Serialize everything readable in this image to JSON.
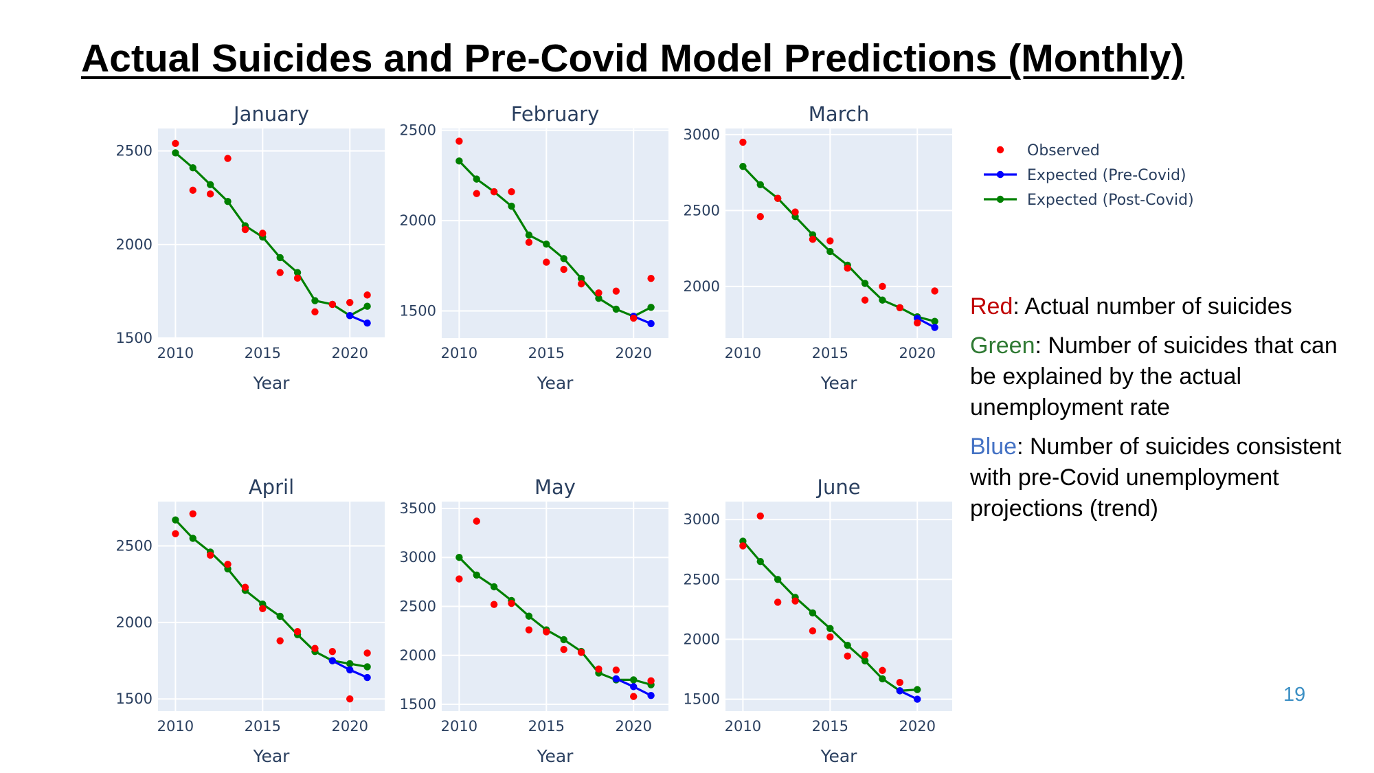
{
  "slide": {
    "title": "Actual Suicides and Pre-Covid Model Predictions (Monthly)",
    "page_number": "19"
  },
  "annotations": [
    {
      "color_word": "Red",
      "color": "#c00000",
      "rest": ": Actual number of suicides"
    },
    {
      "color_word": "Green",
      "color": "#2f7a33",
      "rest": ": Number of suicides that can be explained by the actual unemployment rate"
    },
    {
      "color_word": "Blue",
      "color": "#4472c4",
      "rest": ": Number of suicides consistent with pre-Covid unemployment projections (trend)"
    }
  ],
  "legend": {
    "items": [
      {
        "label": "Observed",
        "color": "#ff0000",
        "type": "markers"
      },
      {
        "label": "Expected (Pre-Covid)",
        "color": "#0000ff",
        "type": "lines+markers"
      },
      {
        "label": "Expected (Post-Covid)",
        "color": "#008000",
        "type": "lines+markers"
      }
    ]
  },
  "chart_data": [
    {
      "type": "scatter",
      "title": "January",
      "xlabel": "Year",
      "x": [
        2010,
        2011,
        2012,
        2013,
        2014,
        2015,
        2016,
        2017,
        2018,
        2019,
        2020,
        2021
      ],
      "xlim": [
        2009,
        2022
      ],
      "ylim": [
        1500,
        2620
      ],
      "xticks": [
        2010,
        2015,
        2020
      ],
      "yticks": [
        1500,
        2000,
        2500
      ],
      "series": [
        {
          "name": "Observed",
          "color": "#ff0000",
          "values": [
            2540,
            2290,
            2270,
            2460,
            2080,
            2060,
            1850,
            1820,
            1640,
            1680,
            1690,
            1730
          ]
        },
        {
          "name": "Expected (Pre-Covid)",
          "color": "#0000ff",
          "values": [
            null,
            null,
            null,
            null,
            null,
            null,
            null,
            null,
            null,
            null,
            1620,
            1580
          ]
        },
        {
          "name": "Expected (Post-Covid)",
          "color": "#008000",
          "values": [
            2490,
            2410,
            2320,
            2230,
            2100,
            2040,
            1930,
            1850,
            1700,
            1680,
            1620,
            1670
          ]
        }
      ]
    },
    {
      "type": "scatter",
      "title": "February",
      "xlabel": "Year",
      "x": [
        2010,
        2011,
        2012,
        2013,
        2014,
        2015,
        2016,
        2017,
        2018,
        2019,
        2020,
        2021
      ],
      "xlim": [
        2009,
        2022
      ],
      "ylim": [
        1350,
        2510
      ],
      "xticks": [
        2010,
        2015,
        2020
      ],
      "yticks": [
        1500,
        2000,
        2500
      ],
      "series": [
        {
          "name": "Observed",
          "color": "#ff0000",
          "values": [
            2440,
            2150,
            2160,
            2160,
            1880,
            1770,
            1730,
            1650,
            1600,
            1610,
            1460,
            1680
          ]
        },
        {
          "name": "Expected (Pre-Covid)",
          "color": "#0000ff",
          "values": [
            null,
            null,
            null,
            null,
            null,
            null,
            null,
            null,
            null,
            null,
            1470,
            1430
          ]
        },
        {
          "name": "Expected (Post-Covid)",
          "color": "#008000",
          "values": [
            2330,
            2230,
            2160,
            2080,
            1920,
            1870,
            1790,
            1680,
            1570,
            1510,
            1470,
            1520
          ]
        }
      ]
    },
    {
      "type": "scatter",
      "title": "March",
      "xlabel": "Year",
      "x": [
        2010,
        2011,
        2012,
        2013,
        2014,
        2015,
        2016,
        2017,
        2018,
        2019,
        2020,
        2021
      ],
      "xlim": [
        2009,
        2022
      ],
      "ylim": [
        1660,
        3040
      ],
      "xticks": [
        2010,
        2015,
        2020
      ],
      "yticks": [
        2000,
        2500,
        3000
      ],
      "series": [
        {
          "name": "Observed",
          "color": "#ff0000",
          "values": [
            2950,
            2460,
            2580,
            2490,
            2310,
            2300,
            2120,
            1910,
            2000,
            1860,
            1760,
            1970
          ]
        },
        {
          "name": "Expected (Pre-Covid)",
          "color": "#0000ff",
          "values": [
            null,
            null,
            null,
            null,
            null,
            null,
            null,
            null,
            null,
            null,
            1790,
            1730
          ]
        },
        {
          "name": "Expected (Post-Covid)",
          "color": "#008000",
          "values": [
            2790,
            2670,
            2580,
            2460,
            2340,
            2230,
            2140,
            2020,
            1910,
            1860,
            1800,
            1770
          ]
        }
      ]
    },
    {
      "type": "scatter",
      "title": "April",
      "xlabel": "Year",
      "x": [
        2010,
        2011,
        2012,
        2013,
        2014,
        2015,
        2016,
        2017,
        2018,
        2019,
        2020,
        2021
      ],
      "xlim": [
        2009,
        2022
      ],
      "ylim": [
        1420,
        2790
      ],
      "xticks": [
        2010,
        2015,
        2020
      ],
      "yticks": [
        1500,
        2000,
        2500
      ],
      "series": [
        {
          "name": "Observed",
          "color": "#ff0000",
          "values": [
            2580,
            2710,
            2440,
            2380,
            2230,
            2090,
            1880,
            1940,
            1830,
            1810,
            1500,
            1800
          ]
        },
        {
          "name": "Expected (Pre-Covid)",
          "color": "#0000ff",
          "values": [
            null,
            null,
            null,
            null,
            null,
            null,
            null,
            null,
            null,
            1750,
            1690,
            1640
          ]
        },
        {
          "name": "Expected (Post-Covid)",
          "color": "#008000",
          "values": [
            2670,
            2550,
            2460,
            2350,
            2210,
            2120,
            2040,
            1920,
            1810,
            1750,
            1730,
            1710
          ]
        }
      ]
    },
    {
      "type": "scatter",
      "title": "May",
      "xlabel": "Year",
      "x": [
        2010,
        2011,
        2012,
        2013,
        2014,
        2015,
        2016,
        2017,
        2018,
        2019,
        2020,
        2021
      ],
      "xlim": [
        2009,
        2022
      ],
      "ylim": [
        1430,
        3570
      ],
      "xticks": [
        2010,
        2015,
        2020
      ],
      "yticks": [
        1500,
        2000,
        2500,
        3000,
        3500
      ],
      "series": [
        {
          "name": "Observed",
          "color": "#ff0000",
          "values": [
            2780,
            3370,
            2520,
            2530,
            2260,
            2240,
            2060,
            2030,
            1860,
            1850,
            1580,
            1740
          ]
        },
        {
          "name": "Expected (Pre-Covid)",
          "color": "#0000ff",
          "values": [
            null,
            null,
            null,
            null,
            null,
            null,
            null,
            null,
            null,
            1760,
            1680,
            1590
          ]
        },
        {
          "name": "Expected (Post-Covid)",
          "color": "#008000",
          "values": [
            3000,
            2820,
            2700,
            2560,
            2400,
            2260,
            2160,
            2040,
            1820,
            1750,
            1750,
            1700
          ]
        }
      ]
    },
    {
      "type": "scatter",
      "title": "June",
      "xlabel": "Year",
      "x": [
        2010,
        2011,
        2012,
        2013,
        2014,
        2015,
        2016,
        2017,
        2018,
        2019,
        2020,
        2021
      ],
      "xlim": [
        2009,
        2022
      ],
      "ylim": [
        1400,
        3150
      ],
      "xticks": [
        2010,
        2015,
        2020
      ],
      "yticks": [
        1500,
        2000,
        2500,
        3000
      ],
      "series": [
        {
          "name": "Observed",
          "color": "#ff0000",
          "values": [
            2780,
            3030,
            2310,
            2320,
            2070,
            2020,
            1860,
            1870,
            1740,
            1640,
            null,
            null
          ]
        },
        {
          "name": "Expected (Pre-Covid)",
          "color": "#0000ff",
          "values": [
            null,
            null,
            null,
            null,
            null,
            null,
            null,
            null,
            null,
            1570,
            1500,
            null
          ]
        },
        {
          "name": "Expected (Post-Covid)",
          "color": "#008000",
          "values": [
            2820,
            2650,
            2500,
            2350,
            2220,
            2090,
            1950,
            1820,
            1670,
            1570,
            1580,
            null
          ]
        }
      ]
    }
  ]
}
